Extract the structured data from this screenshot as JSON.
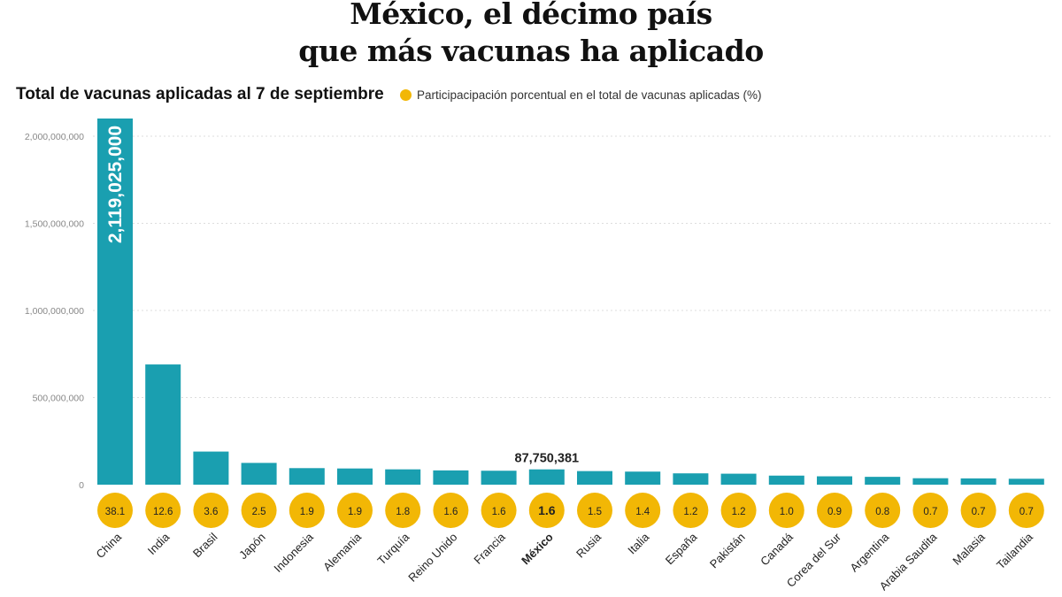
{
  "title_lines": [
    "México, el décimo país",
    "que más vacunas ha aplicado"
  ],
  "colors": {
    "bar": "#1a9fb0",
    "circle": "#f2b705",
    "grid": "#dddddd"
  },
  "chart_data": {
    "type": "bar",
    "title": "México, el décimo país que más vacunas ha aplicado",
    "subtitle": "Total de vacunas aplicadas al 7 de septiembre",
    "legend": "Participacipación porcentual en el total de vacunas aplicadas (%)",
    "legend_position": "top",
    "grid": true,
    "ylim": [
      0,
      2000000000
    ],
    "yticks": [
      0,
      500000000,
      1000000000,
      1500000000,
      2000000000
    ],
    "ytick_labels": [
      "0",
      "500,000,000",
      "1,000,000,000",
      "1,500,000,000",
      "2,000,000,000"
    ],
    "categories": [
      "China",
      "India",
      "Brasil",
      "Japón",
      "Indonesia",
      "Alemania",
      "Turquía",
      "Reino Unido",
      "Francia",
      "México",
      "Rusia",
      "Italia",
      "España",
      "Pakistán",
      "Canadá",
      "Corea del Sur",
      "Argentina",
      "Arabia Saudita",
      "Malasia",
      "Tailandia"
    ],
    "highlight": "México",
    "values": [
      2119025000,
      690000000,
      190000000,
      125000000,
      95000000,
      93000000,
      88000000,
      82000000,
      80000000,
      87750381,
      78000000,
      75000000,
      65000000,
      63000000,
      52000000,
      48000000,
      45000000,
      37000000,
      36000000,
      34000000
    ],
    "percent_labels": [
      "38.1",
      "12.6",
      "3.6",
      "2.5",
      "1.9",
      "1.9",
      "1.8",
      "1.6",
      "1.6",
      "1.6",
      "1.5",
      "1.4",
      "1.2",
      "1.2",
      "1.0",
      "0.9",
      "0.8",
      "0.7",
      "0.7",
      "0.7"
    ],
    "data_labels": {
      "China": "2,119,025,000",
      "México": "87,750,381"
    }
  }
}
